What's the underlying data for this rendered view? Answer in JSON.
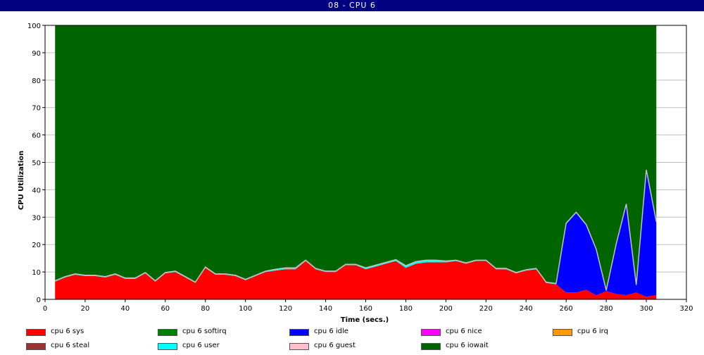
{
  "window": {
    "title": "08 - CPU 6"
  },
  "chart_data": {
    "type": "area",
    "title": "",
    "xlabel": "Time (secs.)",
    "ylabel": "CPU Utilization",
    "xlim": [
      0,
      320
    ],
    "ylim": [
      0,
      100
    ],
    "xticks": [
      0,
      20,
      40,
      60,
      80,
      100,
      120,
      140,
      160,
      180,
      200,
      220,
      240,
      260,
      280,
      300,
      320
    ],
    "yticks": [
      0,
      10,
      20,
      30,
      40,
      50,
      60,
      70,
      80,
      90,
      100
    ],
    "grid": true,
    "stacked": true,
    "legend_position": "bottom",
    "x": [
      5,
      10,
      15,
      20,
      25,
      30,
      35,
      40,
      45,
      50,
      55,
      60,
      65,
      70,
      75,
      80,
      85,
      90,
      95,
      100,
      105,
      110,
      115,
      120,
      125,
      130,
      135,
      140,
      145,
      150,
      155,
      160,
      165,
      170,
      175,
      180,
      185,
      190,
      195,
      200,
      205,
      210,
      215,
      220,
      225,
      230,
      235,
      240,
      245,
      250,
      255,
      260,
      265,
      270,
      275,
      280,
      285,
      290,
      295,
      300,
      305
    ],
    "series": [
      {
        "name": "cpu 6 sys",
        "color": "#ff0000",
        "values": [
          6.5,
          8,
          9,
          8.5,
          8.5,
          8,
          9,
          7.5,
          7.5,
          9.5,
          6.5,
          9.5,
          10,
          8,
          6,
          11.5,
          9,
          9,
          8.5,
          7,
          8.5,
          10,
          10.5,
          11,
          11,
          14,
          11,
          10,
          10,
          12.5,
          12.5,
          11,
          12,
          13,
          14,
          11.5,
          13,
          13.5,
          13.5,
          13.5,
          14,
          13,
          14,
          14,
          11,
          11,
          9.5,
          10.5,
          11,
          6,
          5.5,
          2.5,
          2.5,
          3.5,
          1.5,
          3,
          2,
          1.5,
          2.5,
          1,
          1.5
        ]
      },
      {
        "name": "cpu 6 softirq",
        "color": "#008000",
        "values": [
          0,
          0,
          0,
          0,
          0,
          0,
          0,
          0,
          0,
          0,
          0,
          0,
          0,
          0,
          0,
          0,
          0,
          0,
          0,
          0,
          0,
          0,
          0,
          0,
          0,
          0,
          0,
          0,
          0,
          0,
          0,
          0,
          0,
          0,
          0,
          0,
          0,
          0,
          0,
          0,
          0,
          0,
          0,
          0,
          0,
          0,
          0,
          0,
          0,
          0,
          0,
          0,
          0,
          0,
          0,
          0,
          0,
          0,
          0,
          0,
          0
        ]
      },
      {
        "name": "cpu 6 idle",
        "color": "#0000ff",
        "values": [
          0,
          0,
          0,
          0,
          0,
          0,
          0,
          0,
          0,
          0,
          0,
          0,
          0,
          0,
          0,
          0,
          0,
          0,
          0,
          0,
          0,
          0,
          0,
          0,
          0,
          0,
          0,
          0,
          0,
          0,
          0,
          0,
          0,
          0,
          0,
          0,
          0,
          0,
          0,
          0,
          0,
          0,
          0,
          0,
          0,
          0,
          0,
          0,
          0,
          0,
          0,
          25,
          29,
          23.5,
          16.5,
          0,
          18,
          33,
          2.5,
          46,
          26.5
        ]
      },
      {
        "name": "cpu 6 nice",
        "color": "#ff00ff",
        "values": [
          0,
          0,
          0,
          0,
          0,
          0,
          0,
          0,
          0,
          0,
          0,
          0,
          0,
          0,
          0,
          0,
          0,
          0,
          0,
          0,
          0,
          0,
          0,
          0,
          0,
          0,
          0,
          0,
          0,
          0,
          0,
          0,
          0,
          0,
          0,
          0,
          0,
          0,
          0,
          0,
          0,
          0,
          0,
          0,
          0,
          0,
          0,
          0,
          0,
          0,
          0,
          0,
          0,
          0,
          0,
          0,
          0,
          0,
          0,
          0,
          0
        ]
      },
      {
        "name": "cpu 6 irq",
        "color": "#ff9900",
        "values": [
          0,
          0,
          0,
          0,
          0,
          0,
          0,
          0,
          0,
          0,
          0,
          0,
          0,
          0,
          0,
          0,
          0,
          0,
          0,
          0,
          0,
          0,
          0,
          0,
          0,
          0,
          0,
          0,
          0,
          0,
          0,
          0,
          0,
          0,
          0,
          0,
          0,
          0,
          0,
          0,
          0,
          0,
          0,
          0,
          0,
          0,
          0,
          0,
          0,
          0,
          0,
          0,
          0,
          0,
          0,
          0,
          0,
          0,
          0,
          0,
          0
        ]
      },
      {
        "name": "cpu 6 steal",
        "color": "#993333",
        "values": [
          0,
          0,
          0,
          0,
          0,
          0,
          0,
          0,
          0,
          0,
          0,
          0,
          0,
          0,
          0,
          0,
          0,
          0,
          0,
          0,
          0,
          0,
          0,
          0,
          0,
          0,
          0,
          0,
          0,
          0,
          0,
          0,
          0,
          0,
          0,
          0,
          0,
          0,
          0,
          0,
          0,
          0,
          0,
          0,
          0,
          0,
          0,
          0,
          0,
          0,
          0,
          0,
          0,
          0,
          0,
          0,
          0,
          0,
          0,
          0,
          0
        ]
      },
      {
        "name": "cpu 6 user",
        "color": "#00ffff",
        "values": [
          0.3,
          0.3,
          0.3,
          0.3,
          0.3,
          0.3,
          0.3,
          0.3,
          0.3,
          0.3,
          0.3,
          0.3,
          0.3,
          0.3,
          0.3,
          0.3,
          0.3,
          0.3,
          0.3,
          0.3,
          0.3,
          0.3,
          0.5,
          0.5,
          0.5,
          0.3,
          0.3,
          0.3,
          0.3,
          0.3,
          0.3,
          0.5,
          0.5,
          0.5,
          0.5,
          0.8,
          0.8,
          0.8,
          0.8,
          0.5,
          0.3,
          0.3,
          0.3,
          0.3,
          0.3,
          0.3,
          0.3,
          0.3,
          0.3,
          0.3,
          0.3,
          0.3,
          0.3,
          0.3,
          0.3,
          0.3,
          0.3,
          0.3,
          0.3,
          0.3,
          0.3
        ]
      },
      {
        "name": "cpu 6 guest",
        "color": "#ffc0cb",
        "values": [
          0,
          0,
          0,
          0,
          0,
          0,
          0,
          0,
          0,
          0,
          0,
          0,
          0,
          0,
          0,
          0,
          0,
          0,
          0,
          0,
          0,
          0,
          0,
          0,
          0,
          0,
          0,
          0,
          0,
          0,
          0,
          0,
          0,
          0,
          0,
          0,
          0,
          0,
          0,
          0,
          0,
          0,
          0,
          0,
          0,
          0,
          0,
          0,
          0,
          0,
          0,
          0,
          0,
          0,
          0,
          0,
          0,
          0,
          0,
          0,
          0
        ]
      },
      {
        "name": "cpu 6 iowait",
        "color": "#006400",
        "fill_to": 100,
        "values": [
          93.2,
          91.7,
          90.7,
          91.2,
          91.2,
          91.7,
          90.7,
          92.2,
          92.2,
          90.2,
          93.2,
          90.2,
          89.7,
          91.7,
          93.7,
          88.2,
          90.7,
          90.7,
          91.2,
          92.7,
          91.2,
          89.7,
          89,
          88.5,
          88.5,
          85.7,
          88.7,
          89.7,
          89.7,
          87.2,
          87.2,
          88.5,
          87.5,
          86.5,
          85.5,
          87.7,
          86.2,
          85.7,
          85.7,
          86,
          85.7,
          86.7,
          85.7,
          85.7,
          88.7,
          88.7,
          90.2,
          89.2,
          88.7,
          93.7,
          94.2,
          72.2,
          68.2,
          72.7,
          81.7,
          96.7,
          79.7,
          65.2,
          94.7,
          52.7,
          71.7
        ]
      }
    ],
    "plot_background": "#008000"
  }
}
